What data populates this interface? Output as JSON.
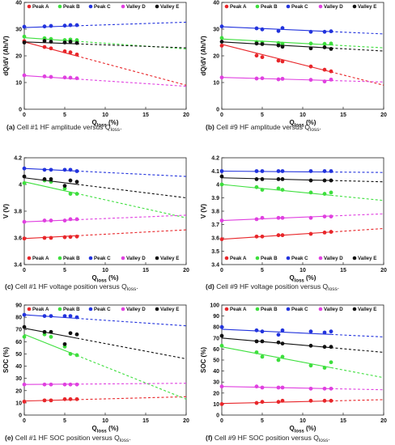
{
  "colors": {
    "Peak A": "#e8262a",
    "Peak B": "#3ddf3d",
    "Peak C": "#2233dd",
    "Valley D": "#e040e0",
    "Valley E": "#111111"
  },
  "chart_data": [
    {
      "type": "scatter",
      "caption": "(a) Cell #1 HF amplitude versus Qloss.",
      "xlabel": "Qloss (%)",
      "ylabel": "dQ/dV (Ah/V)",
      "xlim": [
        0,
        20
      ],
      "ylim": [
        0,
        40
      ],
      "xticks": [
        0,
        5,
        10,
        15,
        20
      ],
      "yticks": [
        0,
        10,
        20,
        30,
        40
      ],
      "grid": false,
      "legend": "top",
      "series": [
        {
          "name": "Peak A",
          "x": [
            0,
            2.5,
            3.3,
            5,
            5.7,
            6.5
          ],
          "y": [
            25.5,
            23.3,
            22.8,
            21.7,
            21.3,
            20.5
          ],
          "fit": [
            25.2,
            9.0
          ],
          "fit_end": 20
        },
        {
          "name": "Peak B",
          "x": [
            0,
            2.5,
            3.3,
            5,
            5.7,
            6.5
          ],
          "y": [
            27.2,
            26.6,
            26.3,
            25.9,
            26.1,
            25.9
          ],
          "fit": [
            26.8,
            22.6
          ],
          "fit_end": 20
        },
        {
          "name": "Peak C",
          "x": [
            0,
            2.5,
            3.3,
            5,
            5.7,
            6.5
          ],
          "y": [
            30.9,
            31.0,
            31.2,
            31.3,
            31.5,
            31.5
          ],
          "fit": [
            30.6,
            32.6
          ],
          "fit_end": 20
        },
        {
          "name": "Valley D",
          "x": [
            0,
            2.5,
            3.3,
            5,
            5.7,
            6.5
          ],
          "y": [
            12.7,
            12.3,
            12.1,
            11.9,
            11.8,
            11.6
          ],
          "fit": [
            12.6,
            8.6
          ],
          "fit_end": 20
        },
        {
          "name": "Valley E",
          "x": [
            0,
            2.5,
            3.3,
            5,
            5.7,
            6.5
          ],
          "y": [
            25.0,
            25.6,
            25.3,
            25.0,
            25.3,
            24.8
          ],
          "fit": [
            25.2,
            23.0
          ],
          "fit_end": 20
        }
      ]
    },
    {
      "type": "scatter",
      "caption": "(b) Cell #9 HF amplitude versus Qloss.",
      "xlabel": "Qloss (%)",
      "ylabel": "dQ/dV (Ah/V)",
      "xlim": [
        0,
        20
      ],
      "ylim": [
        0,
        40
      ],
      "xticks": [
        0,
        5,
        10,
        15,
        20
      ],
      "yticks": [
        0,
        10,
        20,
        30,
        40
      ],
      "grid": false,
      "legend": "top",
      "series": [
        {
          "name": "Peak A",
          "x": [
            0,
            4.3,
            5,
            7,
            7.5,
            11,
            12.7,
            13.5
          ],
          "y": [
            23.8,
            20.1,
            19.5,
            18.2,
            17.9,
            16.0,
            14.8,
            14.2
          ],
          "fit": [
            24.3,
            9.0
          ],
          "fit_end": 20
        },
        {
          "name": "Peak B",
          "x": [
            0,
            4.3,
            5,
            7,
            7.5,
            11,
            12.7,
            13.5
          ],
          "y": [
            26.7,
            25.2,
            25.0,
            24.8,
            24.5,
            24.6,
            24.5,
            24.6
          ],
          "fit": [
            26.3,
            23.0
          ],
          "fit_end": 20
        },
        {
          "name": "Peak C",
          "x": [
            0,
            4.3,
            5,
            7,
            7.5,
            11,
            12.7,
            13.5
          ],
          "y": [
            31.0,
            30.3,
            29.9,
            29.3,
            30.4,
            29.0,
            29.0,
            29.2
          ],
          "fit": [
            30.9,
            28.2
          ],
          "fit_end": 20
        },
        {
          "name": "Valley D",
          "x": [
            0,
            4.3,
            5,
            7,
            7.5,
            11,
            12.7,
            13.5
          ],
          "y": [
            11.9,
            11.5,
            11.6,
            11.2,
            11.4,
            11.0,
            10.4,
            11.1
          ],
          "fit": [
            11.9,
            10.2
          ],
          "fit_end": 20
        },
        {
          "name": "Valley E",
          "x": [
            0,
            4.3,
            5,
            7,
            7.5,
            11,
            12.7,
            13.5
          ],
          "y": [
            25.3,
            24.6,
            24.4,
            23.9,
            23.4,
            22.8,
            23.2,
            22.6
          ],
          "fit": [
            25.2,
            21.8
          ],
          "fit_end": 20
        }
      ]
    },
    {
      "type": "scatter",
      "caption": "(c) Cell #1 HF voltage position versus Qloss.",
      "xlabel": "Qloss (%)",
      "ylabel": "V (V)",
      "xlim": [
        0,
        20
      ],
      "ylim": [
        3.4,
        4.2
      ],
      "xticks": [
        0,
        5,
        10,
        15,
        20
      ],
      "yticks": [
        3.4,
        3.6,
        3.8,
        4.0,
        4.2
      ],
      "ytick_labels": [
        "3.4",
        "3.6",
        "3.8",
        "4",
        "4.2"
      ],
      "grid": false,
      "legend": "bottom",
      "series": [
        {
          "name": "Peak A",
          "x": [
            0,
            2.5,
            3.3,
            5,
            5.7,
            6.5
          ],
          "y": [
            3.595,
            3.6,
            3.6,
            3.605,
            3.607,
            3.61
          ],
          "fit": [
            3.595,
            3.66
          ],
          "fit_end": 20
        },
        {
          "name": "Peak B",
          "x": [
            0,
            2.5,
            3.3,
            5,
            5.7,
            6.5
          ],
          "y": [
            4.01,
            4.03,
            4.02,
            3.97,
            3.93,
            3.93
          ],
          "fit": [
            4.02,
            3.75
          ],
          "fit_end": 20
        },
        {
          "name": "Peak C",
          "x": [
            0,
            2.5,
            3.3,
            5,
            5.7,
            6.5
          ],
          "y": [
            4.12,
            4.11,
            4.11,
            4.11,
            4.11,
            4.1
          ],
          "fit": [
            4.12,
            4.06
          ],
          "fit_end": 20
        },
        {
          "name": "Valley D",
          "x": [
            0,
            2.5,
            3.3,
            5,
            5.7,
            6.5
          ],
          "y": [
            3.72,
            3.73,
            3.73,
            3.73,
            3.74,
            3.74
          ],
          "fit": [
            3.72,
            3.77
          ],
          "fit_end": 20
        },
        {
          "name": "Valley E",
          "x": [
            0,
            2.5,
            3.3,
            5,
            5.7,
            6.5
          ],
          "y": [
            4.06,
            4.04,
            4.04,
            3.99,
            4.03,
            4.02
          ],
          "fit": [
            4.05,
            3.9
          ],
          "fit_end": 20
        }
      ]
    },
    {
      "type": "scatter",
      "caption": "(d) Cell #9 HF voltage position versus Qloss.",
      "xlabel": "Qloss (%)",
      "ylabel": "V (V)",
      "xlim": [
        0,
        20
      ],
      "ylim": [
        3.4,
        4.2
      ],
      "xticks": [
        0,
        5,
        10,
        15,
        20
      ],
      "yticks": [
        3.4,
        3.5,
        3.6,
        3.7,
        3.8,
        3.9,
        4.0,
        4.1,
        4.2
      ],
      "ytick_labels": [
        "3.4",
        "3.5",
        "3.6",
        "3.7",
        "3.8",
        "3.9",
        "4",
        "4.1",
        "4.2"
      ],
      "grid": false,
      "legend": "bottom",
      "series": [
        {
          "name": "Peak A",
          "x": [
            0,
            4.3,
            5,
            7,
            7.5,
            11,
            12.7,
            13.5
          ],
          "y": [
            3.59,
            3.61,
            3.61,
            3.62,
            3.62,
            3.63,
            3.64,
            3.645
          ],
          "fit": [
            3.59,
            3.67
          ],
          "fit_end": 20
        },
        {
          "name": "Peak B",
          "x": [
            0,
            4.3,
            5,
            7,
            7.5,
            11,
            12.7,
            13.5
          ],
          "y": [
            4.0,
            3.98,
            3.96,
            3.97,
            3.96,
            3.94,
            3.93,
            3.94
          ],
          "fit": [
            4.0,
            3.88
          ],
          "fit_end": 20
        },
        {
          "name": "Peak C",
          "x": [
            0,
            4.3,
            5,
            7,
            7.5,
            11,
            12.7,
            13.5
          ],
          "y": [
            4.1,
            4.1,
            4.1,
            4.1,
            4.1,
            4.1,
            4.1,
            4.1
          ],
          "fit": [
            4.1,
            4.09
          ],
          "fit_end": 20
        },
        {
          "name": "Valley D",
          "x": [
            0,
            4.3,
            5,
            7,
            7.5,
            11,
            12.7,
            13.5
          ],
          "y": [
            3.73,
            3.74,
            3.75,
            3.75,
            3.75,
            3.75,
            3.76,
            3.76
          ],
          "fit": [
            3.73,
            3.78
          ],
          "fit_end": 20
        },
        {
          "name": "Valley E",
          "x": [
            0,
            4.3,
            5,
            7,
            7.5,
            11,
            12.7,
            13.5
          ],
          "y": [
            4.06,
            4.04,
            4.04,
            4.04,
            4.04,
            4.03,
            4.03,
            4.03
          ],
          "fit": [
            4.05,
            4.02
          ],
          "fit_end": 20
        }
      ]
    },
    {
      "type": "scatter",
      "caption": "(e) Cell #1 HF SOC position versus Qloss.",
      "xlabel": "Qloss (%)",
      "ylabel": "SOC (%)",
      "xlim": [
        0,
        20
      ],
      "ylim": [
        0,
        90
      ],
      "xticks": [
        0,
        5,
        10,
        15,
        20
      ],
      "yticks": [
        0,
        10,
        20,
        30,
        40,
        50,
        60,
        70,
        80,
        90
      ],
      "grid": false,
      "legend": "top",
      "series": [
        {
          "name": "Peak A",
          "x": [
            0,
            2.5,
            3.3,
            5,
            5.7,
            6.5
          ],
          "y": [
            11,
            12,
            12,
            13,
            13,
            13
          ],
          "fit": [
            11.5,
            15
          ],
          "fit_end": 20
        },
        {
          "name": "Peak B",
          "x": [
            0,
            2.5,
            3.3,
            5,
            5.7,
            6.5
          ],
          "y": [
            64,
            66,
            64,
            56,
            50,
            49
          ],
          "fit": [
            66,
            13
          ],
          "fit_end": 20
        },
        {
          "name": "Peak C",
          "x": [
            0,
            2.5,
            3.3,
            5,
            5.7,
            6.5
          ],
          "y": [
            82,
            81,
            81,
            81,
            81,
            80
          ],
          "fit": [
            82,
            73
          ],
          "fit_end": 20
        },
        {
          "name": "Valley D",
          "x": [
            0,
            2.5,
            3.3,
            5,
            5.7,
            6.5
          ],
          "y": [
            25,
            25,
            25,
            25,
            25,
            25
          ],
          "fit": [
            25,
            26
          ],
          "fit_end": 20
        },
        {
          "name": "Valley E",
          "x": [
            0,
            2.5,
            3.3,
            5,
            5.7,
            6.5
          ],
          "y": [
            72,
            68,
            68,
            58,
            67,
            66
          ],
          "fit": [
            71,
            46
          ],
          "fit_end": 20
        }
      ]
    },
    {
      "type": "scatter",
      "caption": "(f) Cell #9 HF SOC position versus Qloss.",
      "xlabel": "Qloss (%)",
      "ylabel": "SOC (%)",
      "xlim": [
        0,
        20
      ],
      "ylim": [
        0,
        100
      ],
      "xticks": [
        0,
        5,
        10,
        15,
        20
      ],
      "yticks": [
        0,
        10,
        20,
        30,
        40,
        50,
        60,
        70,
        80,
        90,
        100
      ],
      "grid": false,
      "legend": "top",
      "series": [
        {
          "name": "Peak A",
          "x": [
            0,
            4.3,
            5,
            7,
            7.5,
            11,
            12.7,
            13.5
          ],
          "y": [
            10,
            11,
            12,
            12,
            13,
            13,
            13,
            13
          ],
          "fit": [
            10.5,
            14
          ],
          "fit_end": 20
        },
        {
          "name": "Peak B",
          "x": [
            0,
            4.3,
            5,
            7,
            7.5,
            11,
            12.7,
            13.5
          ],
          "y": [
            63,
            57,
            53,
            50,
            53,
            45,
            43,
            48
          ],
          "fit": [
            62,
            34
          ],
          "fit_end": 20
        },
        {
          "name": "Peak C",
          "x": [
            0,
            4.3,
            5,
            7,
            7.5,
            11,
            12.7,
            13.5
          ],
          "y": [
            80,
            77,
            76,
            73,
            77,
            76,
            75,
            76
          ],
          "fit": [
            78,
            71
          ],
          "fit_end": 20
        },
        {
          "name": "Valley D",
          "x": [
            0,
            4.3,
            5,
            7,
            7.5,
            11,
            12.7,
            13.5
          ],
          "y": [
            26,
            26,
            25,
            25,
            25,
            24,
            24,
            24
          ],
          "fit": [
            26,
            23
          ],
          "fit_end": 20
        },
        {
          "name": "Valley E",
          "x": [
            0,
            4.3,
            5,
            7,
            7.5,
            11,
            12.7,
            13.5
          ],
          "y": [
            72,
            67,
            67,
            66,
            65,
            63,
            62,
            62
          ],
          "fit": [
            70,
            57
          ],
          "fit_end": 20
        }
      ]
    }
  ]
}
